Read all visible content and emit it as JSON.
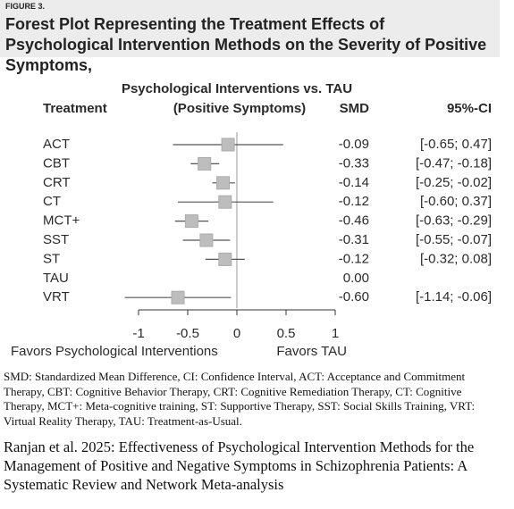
{
  "figure_label": "FIGURE 3.",
  "heading": "Forest Plot Representing the Treatment Effects of Psychological Intervention Methods on the Severity of Positive Symptoms,",
  "chart_data": {
    "type": "forest",
    "title": "Psychological Interventions vs. TAU",
    "subtitle": "(Positive Symptoms)",
    "columns": [
      "Treatment",
      "SMD",
      "95%-CI"
    ],
    "categories": [
      "ACT",
      "CBT",
      "CRT",
      "CT",
      "MCT+",
      "SST",
      "ST",
      "TAU",
      "VRT"
    ],
    "values": [
      -0.09,
      -0.33,
      -0.14,
      -0.12,
      -0.46,
      -0.31,
      -0.12,
      0,
      -0.6
    ],
    "value_labels": [
      "-0.09",
      "-0.33",
      "-0.14",
      "-0.12",
      "-0.46",
      "-0.31",
      "-0.12",
      "0.00",
      "-0.60"
    ],
    "lower": [
      -0.65,
      -0.47,
      -0.25,
      -0.6,
      -0.63,
      -0.55,
      -0.32,
      null,
      -1.14
    ],
    "upper": [
      0.47,
      -0.18,
      -0.02,
      0.37,
      -0.29,
      -0.07,
      0.08,
      null,
      -0.06
    ],
    "ci_labels": [
      "[-0.65; 0.47]",
      "[-0.47; -0.18]",
      "[-0.25; -0.02]",
      "[-0.60; 0.37]",
      "[-0.63; -0.29]",
      "[-0.55; -0.07]",
      "[-0.32; 0.08]",
      null,
      "[-1.14; -0.06]"
    ],
    "color": "#bdbdbd",
    "xlim": [
      -1,
      1
    ],
    "xticks": [
      -1,
      -0.5,
      0,
      0.5,
      1
    ],
    "x_label_left": "Favors Psychological Interventions",
    "x_label_right": "Favors TAU"
  },
  "footnote": "SMD: Standardized Mean Difference, CI: Confidence Interval, ACT: Acceptance and Commitment Therapy, CBT: Cognitive Behavior Therapy, CRT: Cognitive Remediation Therapy, CT: Cognitive Therapy, MCT+: Meta-cognitive training, ST: Supportive Therapy, SST: Social Skills Training, VRT: Virtual Reality Therapy, TAU: Treatment-as-Usual.",
  "citation": "Ranjan et al. 2025: Effectiveness of Psychological Intervention Methods for the Management of Positive and Negative Symptoms in Schizophrenia Patients: A Systematic Review and Network Meta-analysis"
}
